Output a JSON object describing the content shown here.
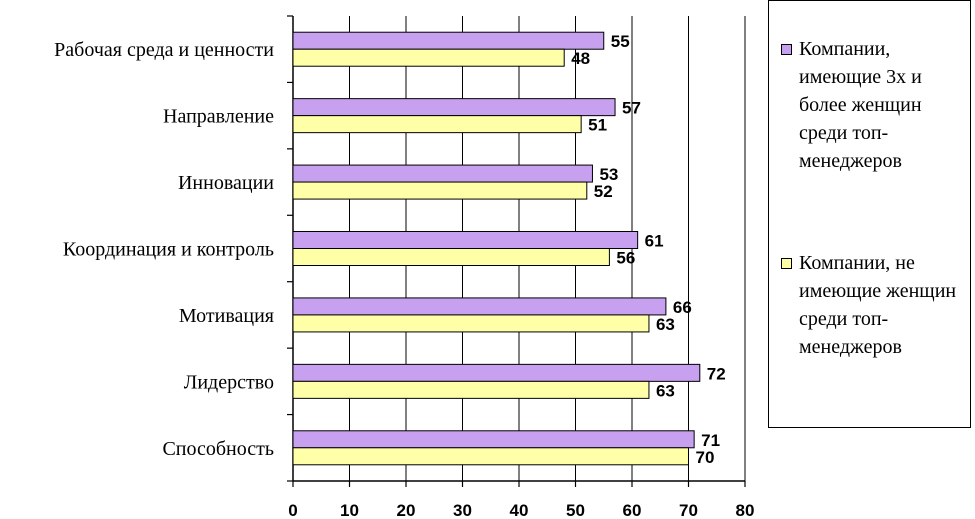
{
  "chart_data": {
    "type": "bar",
    "orientation": "horizontal",
    "categories": [
      "Рабочая среда и ценности",
      "Направление",
      "Инновации",
      "Координация и контроль",
      "Мотивация",
      "Лидерство",
      "Способность"
    ],
    "series": [
      {
        "name": "Компании, имеющие 3х и более женщин среди топ-менеджеров",
        "values": [
          55,
          57,
          53,
          61,
          66,
          72,
          71
        ],
        "color": "#c8a0f0"
      },
      {
        "name": "Компании, не имеющие женщин среди топ-менеджеров",
        "values": [
          48,
          51,
          52,
          56,
          63,
          63,
          70
        ],
        "color": "#ffffa8"
      }
    ],
    "xlim": [
      0,
      80
    ],
    "xticks": [
      0,
      10,
      20,
      30,
      40,
      50,
      60,
      70,
      80
    ],
    "grid": "vertical",
    "legend_position": "right"
  }
}
